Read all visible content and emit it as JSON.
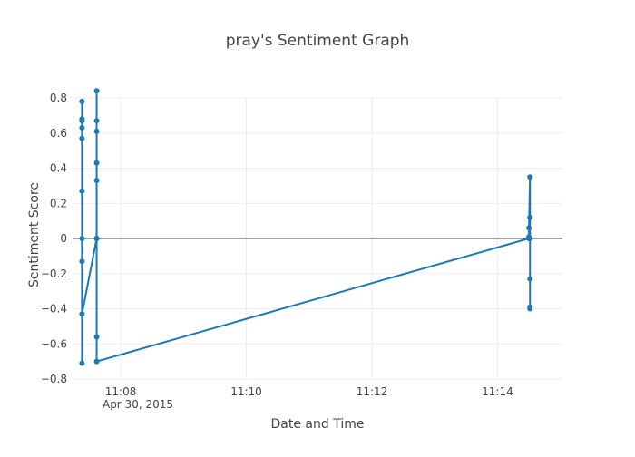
{
  "chart_data": {
    "type": "line",
    "title": "pray's Sentiment Graph",
    "xlabel": "Date and Time",
    "ylabel": "Sentiment Score",
    "date_label": "Apr 30, 2015",
    "x_tick_labels": [
      "11:08",
      "11:10",
      "11:12",
      "11:14"
    ],
    "y_ticks": [
      -0.8,
      -0.6,
      -0.4,
      -0.2,
      0,
      0.2,
      0.4,
      0.6,
      0.8
    ],
    "y_tick_labels": [
      "−0.8",
      "−0.6",
      "−0.4",
      "−0.2",
      "0",
      "0.2",
      "0.4",
      "0.6",
      "0.8"
    ],
    "ylim": [
      -0.8,
      0.8
    ],
    "xlim": [
      "2015-04-30 11:07:14",
      "2015-04-30 11:15:02"
    ],
    "grid": true,
    "zero_line": true,
    "colors": {
      "series": "#1f77b4",
      "grid": "#eeeeee",
      "zeroline": "#444444",
      "text": "#444444"
    },
    "series": [
      {
        "x": [
          "2015-04-30 11:07:23",
          "2015-04-30 11:07:23",
          "2015-04-30 11:07:23",
          "2015-04-30 11:07:23",
          "2015-04-30 11:07:23",
          "2015-04-30 11:07:23",
          "2015-04-30 11:07:23",
          "2015-04-30 11:07:23",
          "2015-04-30 11:07:23",
          "2015-04-30 11:07:23",
          "2015-04-30 11:07:37",
          "2015-04-30 11:07:37",
          "2015-04-30 11:07:37",
          "2015-04-30 11:07:37",
          "2015-04-30 11:07:37",
          "2015-04-30 11:07:37",
          "2015-04-30 11:07:37",
          "2015-04-30 11:07:37",
          "2015-04-30 11:07:37",
          "2015-04-30 11:14:30",
          "2015-04-30 11:14:30",
          "2015-04-30 11:14:30",
          "2015-04-30 11:14:31",
          "2015-04-30 11:14:31",
          "2015-04-30 11:14:31",
          "2015-04-30 11:14:31",
          "2015-04-30 11:14:31",
          "2015-04-30 11:14:31"
        ],
        "y": [
          -0.71,
          0.78,
          0.68,
          0.67,
          0.63,
          0.57,
          0.27,
          -0.13,
          0.0,
          -0.43,
          0.0,
          0.84,
          0.67,
          0.61,
          0.43,
          0.33,
          0.0,
          -0.56,
          -0.7,
          0.0,
          0.01,
          0.06,
          0.35,
          0.12,
          0.0,
          -0.23,
          -0.39,
          -0.4
        ]
      }
    ]
  }
}
